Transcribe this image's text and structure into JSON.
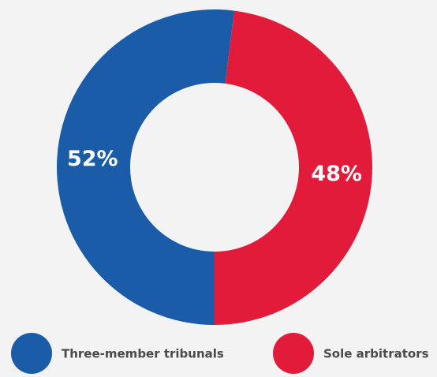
{
  "chart_data": {
    "type": "donut",
    "categories": [
      "Three-member tribunals",
      "Sole arbitrators"
    ],
    "values": [
      52,
      48
    ],
    "value_labels": [
      "52%",
      "48%"
    ],
    "colors": [
      "#1a5ca8",
      "#e31b3a"
    ]
  }
}
